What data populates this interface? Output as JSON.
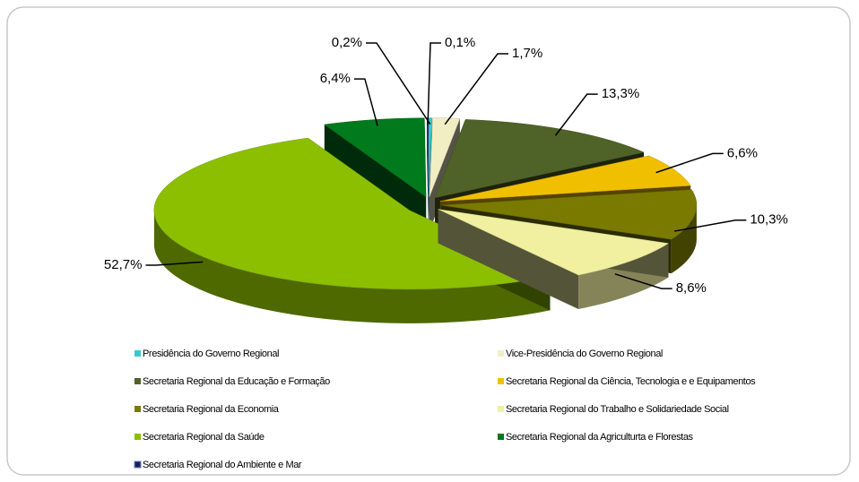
{
  "chart_data": {
    "type": "pie",
    "categories": [
      "Presidência do Governo Regional",
      "Vice-Presidência do Governo Regional",
      "Secretaria Regional da Educação e Formação",
      "Secretaria Regional da Ciência, Tecnologia e  e Equipamentos",
      "Secretaria Regional da Economia",
      "Secretaria Regional do Trabalho e Solidariedade Social",
      "Secretaria Regional da Saúde",
      "Secretaria Regional da Agriculturta e Florestas",
      "Secretaria Regional do Ambiente e Mar"
    ],
    "values": [
      0.2,
      1.7,
      13.3,
      6.6,
      10.3,
      8.6,
      52.7,
      6.4,
      0.1
    ],
    "value_labels": [
      "0,2%",
      "1,7%",
      "13,3%",
      "6,6%",
      "10,3%",
      "8,6%",
      "52,7%",
      "6,4%",
      "0,1%"
    ],
    "colors": [
      "#33cccc",
      "#f2eec4",
      "#4f6228",
      "#f0c000",
      "#7a7a00",
      "#f0f0a0",
      "#8cbf00",
      "#007a1c",
      "#1f1f5f"
    ]
  }
}
